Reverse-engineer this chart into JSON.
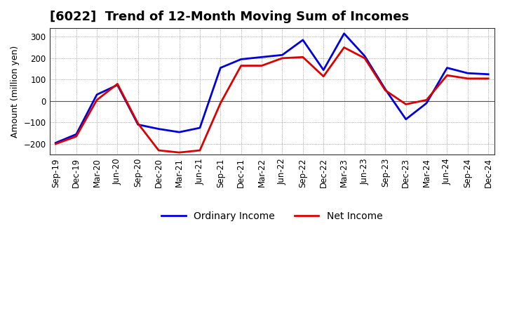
{
  "title": "[6022]  Trend of 12-Month Moving Sum of Incomes",
  "ylabel": "Amount (million yen)",
  "x_labels": [
    "Sep-19",
    "Dec-19",
    "Mar-20",
    "Jun-20",
    "Sep-20",
    "Dec-20",
    "Mar-21",
    "Jun-21",
    "Sep-21",
    "Dec-21",
    "Mar-22",
    "Jun-22",
    "Sep-22",
    "Dec-22",
    "Mar-23",
    "Jun-23",
    "Sep-23",
    "Dec-23",
    "Mar-24",
    "Jun-24",
    "Sep-24",
    "Dec-24"
  ],
  "ordinary_income": [
    -195,
    -155,
    30,
    75,
    -110,
    -130,
    -145,
    -125,
    155,
    195,
    205,
    215,
    285,
    145,
    315,
    210,
    55,
    -85,
    -10,
    155,
    130,
    125
  ],
  "net_income": [
    -200,
    -165,
    5,
    80,
    -105,
    -230,
    -240,
    -230,
    -10,
    165,
    165,
    200,
    205,
    115,
    250,
    200,
    50,
    -15,
    5,
    120,
    105,
    105
  ],
  "ordinary_income_color": "#0000DD",
  "net_income_color": "#DD0000",
  "ylim": [
    -250,
    340
  ],
  "yticks": [
    -200,
    -100,
    0,
    100,
    200,
    300
  ],
  "bg_color": "#FFFFFF",
  "grid_color": "#888888",
  "line_width": 2.0,
  "title_fontsize": 13,
  "axis_label_fontsize": 9,
  "tick_fontsize": 8.5,
  "legend_fontsize": 10
}
